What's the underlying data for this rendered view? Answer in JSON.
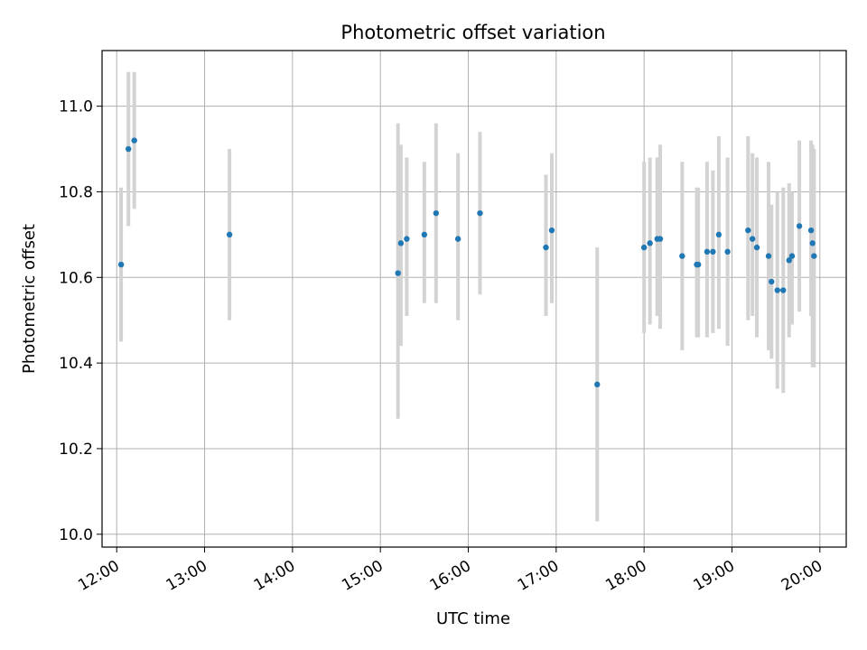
{
  "chart_data": {
    "type": "scatter",
    "title": "Photometric offset variation",
    "xlabel": "UTC time",
    "ylabel": "Photometric offset",
    "xlim": [
      "11:50",
      "20:18"
    ],
    "ylim": [
      9.97,
      11.13
    ],
    "grid": true,
    "x_ticks": [
      "12:00",
      "13:00",
      "14:00",
      "15:00",
      "16:00",
      "17:00",
      "18:00",
      "19:00",
      "20:00"
    ],
    "y_ticks": [
      "10.0",
      "10.2",
      "10.4",
      "10.6",
      "10.8",
      "11.0"
    ],
    "colors": {
      "points": "#1f77b4",
      "error_bars": "#d3d3d3",
      "grid": "#b0b0b0",
      "axes": "#000000"
    },
    "series": [
      {
        "points": [
          {
            "x": "12:03",
            "y": 10.63,
            "low": 10.45,
            "high": 10.81
          },
          {
            "x": "12:08",
            "y": 10.9,
            "low": 10.72,
            "high": 11.08
          },
          {
            "x": "12:12",
            "y": 10.92,
            "low": 10.76,
            "high": 11.08
          },
          {
            "x": "13:17",
            "y": 10.7,
            "low": 10.5,
            "high": 10.9
          },
          {
            "x": "15:12",
            "y": 10.61,
            "low": 10.27,
            "high": 10.96
          },
          {
            "x": "15:14",
            "y": 10.68,
            "low": 10.44,
            "high": 10.91
          },
          {
            "x": "15:18",
            "y": 10.69,
            "low": 10.51,
            "high": 10.88
          },
          {
            "x": "15:30",
            "y": 10.7,
            "low": 10.54,
            "high": 10.87
          },
          {
            "x": "15:38",
            "y": 10.75,
            "low": 10.54,
            "high": 10.96
          },
          {
            "x": "15:53",
            "y": 10.69,
            "low": 10.5,
            "high": 10.89
          },
          {
            "x": "16:08",
            "y": 10.75,
            "low": 10.56,
            "high": 10.94
          },
          {
            "x": "16:53",
            "y": 10.67,
            "low": 10.51,
            "high": 10.84
          },
          {
            "x": "16:57",
            "y": 10.71,
            "low": 10.54,
            "high": 10.89
          },
          {
            "x": "17:28",
            "y": 10.35,
            "low": 10.03,
            "high": 10.67
          },
          {
            "x": "18:00",
            "y": 10.67,
            "low": 10.47,
            "high": 10.87
          },
          {
            "x": "18:04",
            "y": 10.68,
            "low": 10.49,
            "high": 10.88
          },
          {
            "x": "18:09",
            "y": 10.69,
            "low": 10.51,
            "high": 10.88
          },
          {
            "x": "18:11",
            "y": 10.69,
            "low": 10.48,
            "high": 10.91
          },
          {
            "x": "18:26",
            "y": 10.65,
            "low": 10.43,
            "high": 10.87
          },
          {
            "x": "18:36",
            "y": 10.63,
            "low": 10.46,
            "high": 10.81
          },
          {
            "x": "18:37",
            "y": 10.63,
            "low": 10.46,
            "high": 10.81
          },
          {
            "x": "18:43",
            "y": 10.66,
            "low": 10.46,
            "high": 10.87
          },
          {
            "x": "18:47",
            "y": 10.66,
            "low": 10.47,
            "high": 10.85
          },
          {
            "x": "18:51",
            "y": 10.7,
            "low": 10.48,
            "high": 10.93
          },
          {
            "x": "18:57",
            "y": 10.66,
            "low": 10.44,
            "high": 10.88
          },
          {
            "x": "19:11",
            "y": 10.71,
            "low": 10.5,
            "high": 10.93
          },
          {
            "x": "19:14",
            "y": 10.69,
            "low": 10.51,
            "high": 10.89
          },
          {
            "x": "19:17",
            "y": 10.67,
            "low": 10.46,
            "high": 10.88
          },
          {
            "x": "19:25",
            "y": 10.65,
            "low": 10.43,
            "high": 10.87
          },
          {
            "x": "19:27",
            "y": 10.59,
            "low": 10.41,
            "high": 10.77
          },
          {
            "x": "19:31",
            "y": 10.57,
            "low": 10.34,
            "high": 10.8
          },
          {
            "x": "19:35",
            "y": 10.57,
            "low": 10.33,
            "high": 10.81
          },
          {
            "x": "19:39",
            "y": 10.64,
            "low": 10.46,
            "high": 10.82
          },
          {
            "x": "19:41",
            "y": 10.65,
            "low": 10.49,
            "high": 10.8
          },
          {
            "x": "19:46",
            "y": 10.72,
            "low": 10.52,
            "high": 10.92
          },
          {
            "x": "19:54",
            "y": 10.71,
            "low": 10.51,
            "high": 10.92
          },
          {
            "x": "19:55",
            "y": 10.68,
            "low": 10.39,
            "high": 10.91
          },
          {
            "x": "19:56",
            "y": 10.65,
            "low": 10.39,
            "high": 10.9
          }
        ]
      }
    ]
  }
}
